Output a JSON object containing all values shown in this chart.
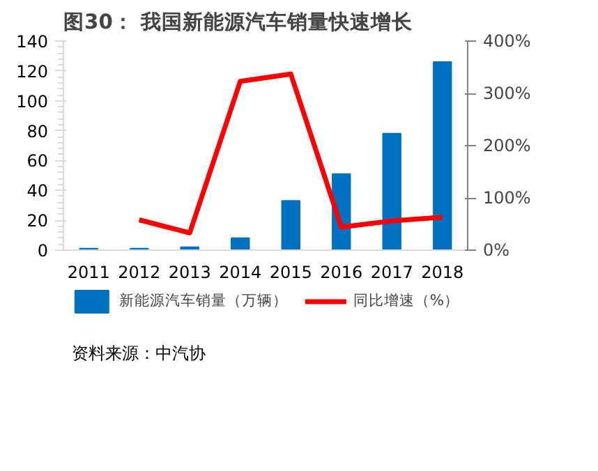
{
  "chart_data": {
    "type": "bar",
    "title": "图30：   我国新能源汽车销量快速增长",
    "categories": [
      "2011",
      "2012",
      "2013",
      "2014",
      "2015",
      "2016",
      "2017",
      "2018"
    ],
    "series": [
      {
        "name": "新能源汽车销量（万辆）",
        "color": "#0070c0",
        "values": [
          1,
          1,
          2,
          8,
          33,
          51,
          78,
          126
        ]
      },
      {
        "name": "同比增速（%）",
        "color": "#ff0000",
        "type": "line",
        "axis": "y2",
        "values": [
          null,
          58,
          33,
          323,
          337,
          44,
          56,
          63
        ]
      }
    ],
    "ylim": [
      0,
      140
    ],
    "yticks": [
      0,
      20,
      40,
      60,
      80,
      100,
      120,
      140
    ],
    "y2lim": [
      0,
      400
    ],
    "y2ticks": [
      {
        "value": 0,
        "label": "0%"
      },
      {
        "value": 100,
        "label": "100%"
      },
      {
        "value": 200,
        "label": "200%"
      },
      {
        "value": 300,
        "label": "300%"
      },
      {
        "value": 400,
        "label": "400%"
      }
    ],
    "legend": "bottom",
    "grid": false,
    "annotations": [
      "资料来源：中汽协"
    ]
  }
}
